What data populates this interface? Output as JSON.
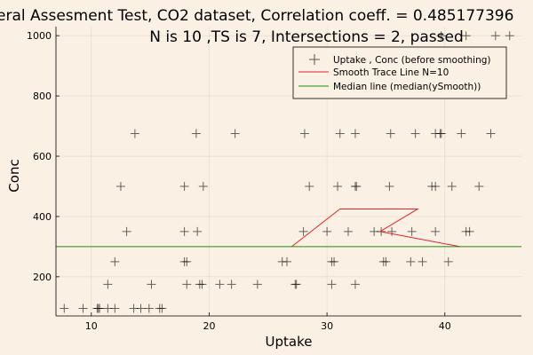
{
  "chart_data": {
    "type": "scatter",
    "title": "eral Assesment Test, CO2 dataset, Correlation coeff. = 0.485177396",
    "subtitle": "N is 10 ,TS is 7, Intersections = 2, passed",
    "xlabel": "Uptake",
    "ylabel": "Conc",
    "xlim": [
      7.0,
      46.5
    ],
    "ylim": [
      70,
      1030
    ],
    "xticks": [
      10,
      20,
      30,
      40
    ],
    "yticks": [
      200,
      400,
      600,
      800,
      1000
    ],
    "grid": true,
    "legend_position": "top-right",
    "series": [
      {
        "name": "Uptake , Conc (before smoothing)",
        "kind": "scatter",
        "marker": "plus",
        "color": "#000000",
        "points": [
          [
            7.7,
            95
          ],
          [
            9.3,
            95
          ],
          [
            10.5,
            95
          ],
          [
            10.6,
            95
          ],
          [
            10.7,
            95
          ],
          [
            11.4,
            95
          ],
          [
            12.0,
            95
          ],
          [
            13.6,
            95
          ],
          [
            14.2,
            95
          ],
          [
            14.9,
            95
          ],
          [
            15.8,
            95
          ],
          [
            16.0,
            95
          ],
          [
            11.4,
            175
          ],
          [
            15.1,
            175
          ],
          [
            18.1,
            175
          ],
          [
            19.2,
            175
          ],
          [
            19.4,
            175
          ],
          [
            20.9,
            175
          ],
          [
            21.9,
            175
          ],
          [
            24.1,
            175
          ],
          [
            27.3,
            175
          ],
          [
            27.4,
            175
          ],
          [
            30.4,
            175
          ],
          [
            32.4,
            175
          ],
          [
            12.0,
            250
          ],
          [
            17.9,
            250
          ],
          [
            18.1,
            250
          ],
          [
            26.2,
            250
          ],
          [
            26.6,
            250
          ],
          [
            30.4,
            250
          ],
          [
            30.6,
            250
          ],
          [
            34.8,
            250
          ],
          [
            35.0,
            250
          ],
          [
            37.1,
            250
          ],
          [
            38.1,
            250
          ],
          [
            40.3,
            250
          ],
          [
            13.0,
            350
          ],
          [
            17.9,
            350
          ],
          [
            19.0,
            350
          ],
          [
            28.0,
            350
          ],
          [
            30.0,
            350
          ],
          [
            31.8,
            350
          ],
          [
            34.0,
            350
          ],
          [
            34.6,
            350
          ],
          [
            35.5,
            350
          ],
          [
            37.2,
            350
          ],
          [
            39.2,
            350
          ],
          [
            41.8,
            350
          ],
          [
            42.1,
            350
          ],
          [
            12.5,
            500
          ],
          [
            17.9,
            500
          ],
          [
            19.5,
            500
          ],
          [
            28.5,
            500
          ],
          [
            30.9,
            500
          ],
          [
            32.4,
            500
          ],
          [
            32.5,
            500
          ],
          [
            35.3,
            500
          ],
          [
            38.9,
            500
          ],
          [
            39.2,
            500
          ],
          [
            40.6,
            500
          ],
          [
            42.9,
            500
          ],
          [
            13.7,
            675
          ],
          [
            18.9,
            675
          ],
          [
            22.2,
            675
          ],
          [
            28.1,
            675
          ],
          [
            31.1,
            675
          ],
          [
            32.4,
            675
          ],
          [
            35.4,
            675
          ],
          [
            37.5,
            675
          ],
          [
            39.2,
            675
          ],
          [
            39.6,
            675
          ],
          [
            39.7,
            675
          ],
          [
            41.4,
            675
          ],
          [
            43.9,
            675
          ],
          [
            39.7,
            1000
          ],
          [
            41.8,
            1000
          ],
          [
            44.3,
            1000
          ],
          [
            45.5,
            1000
          ]
        ]
      },
      {
        "name": "Smooth Trace Line N=10",
        "kind": "line",
        "color": "#e0262b",
        "points": [
          [
            27.0,
            300
          ],
          [
            31.1,
            425
          ],
          [
            37.7,
            425
          ],
          [
            34.5,
            350
          ],
          [
            41.3,
            300
          ]
        ]
      },
      {
        "name": "Median line (median(ySmooth))",
        "kind": "hline",
        "color": "#1e8c12",
        "y": 300
      }
    ]
  }
}
